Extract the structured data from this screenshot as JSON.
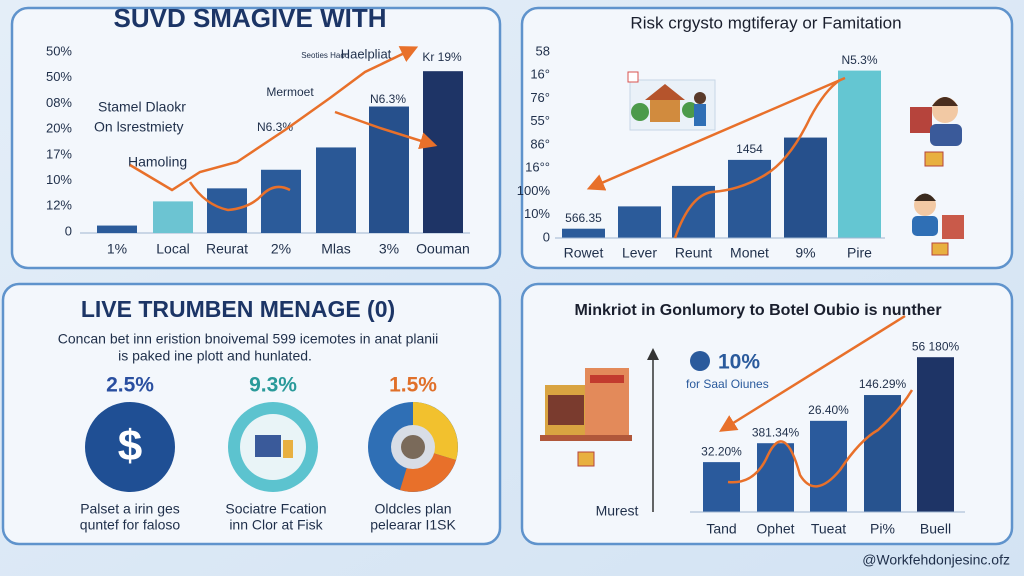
{
  "panels": [
    {
      "title": "SUVD SMAGIVE WITH",
      "y_labels": [
        "50%",
        "50%",
        "08%",
        "20%",
        "17%",
        "10%",
        "12%",
        "0"
      ],
      "categories": [
        "1%",
        "Local",
        "Reurat",
        "2%",
        "Mlas",
        "3%",
        "Oouman"
      ],
      "bars": [
        4,
        17,
        24,
        34,
        46,
        68,
        87
      ],
      "colors": [
        "#2b5b9a",
        "#6cc4d2",
        "#2b5b9a",
        "#2b5b9a",
        "#2a5896",
        "#26508c",
        "#1e3466"
      ],
      "annotations": [
        "Stamel Dlaokr",
        "On lsrestmiety",
        "Hamoling",
        "N6.3%",
        "Mermoet",
        "N6.3%",
        "Seoties Haoc",
        "Haelpliat",
        "Kr 19%"
      ]
    },
    {
      "title": "Risk crgysto mgtiferay or Famitation",
      "y_labels": [
        "58",
        "16°",
        "76°",
        "55°",
        "86°",
        "16°°",
        "100%",
        "10%",
        "0"
      ],
      "categories": [
        "Rowet",
        "Lever",
        "Reunt",
        "Monet",
        "9%",
        "Pire"
      ],
      "bars": [
        5,
        17,
        28,
        42,
        54,
        90
      ],
      "colors": [
        "#2b5b9a",
        "#2b5b9a",
        "#2b5b9a",
        "#2a5896",
        "#26508c",
        "#64c6d2"
      ],
      "bar_labels": [
        "566.35",
        null,
        null,
        "1454",
        null,
        "N5.3%"
      ]
    },
    {
      "title": "LIVE TRUMBEN MENAGE (0)",
      "description": [
        "Concan bet inn eristion bnoivemal 599 icemotes in anat planii",
        "is paked ine plott and hunlated."
      ],
      "items": [
        {
          "value": "2.5%",
          "symbol": "$",
          "caption": [
            "Palset a irin ges",
            "quntef for faloso"
          ]
        },
        {
          "value": "9.3%",
          "caption": [
            "Sociatre Fcation",
            "inn Clor at Fisk"
          ]
        },
        {
          "value": "1.5%",
          "caption": [
            "Oldcles plan",
            "pelearar I1SK"
          ]
        }
      ]
    },
    {
      "title": "Minkriot in Gonlumory to Botel Oubio is nunther",
      "highlight": "10%",
      "highlight_caption": "for Saal Oiunes",
      "axis_label": "Murest",
      "categories": [
        "Tand",
        "Ophet",
        "Tueat",
        "Pi%",
        "Buell"
      ],
      "bars": [
        29,
        40,
        53,
        68,
        90
      ],
      "colors": [
        "#2a5a9c",
        "#2a5a9c",
        "#2a5a9c",
        "#27538f",
        "#1e3466"
      ],
      "bar_labels": [
        "32.20%",
        "381.34%",
        "26.40%",
        "146.29%",
        "56 180%"
      ]
    }
  ],
  "footer": "@Workfehdonjesinc.ofz"
}
